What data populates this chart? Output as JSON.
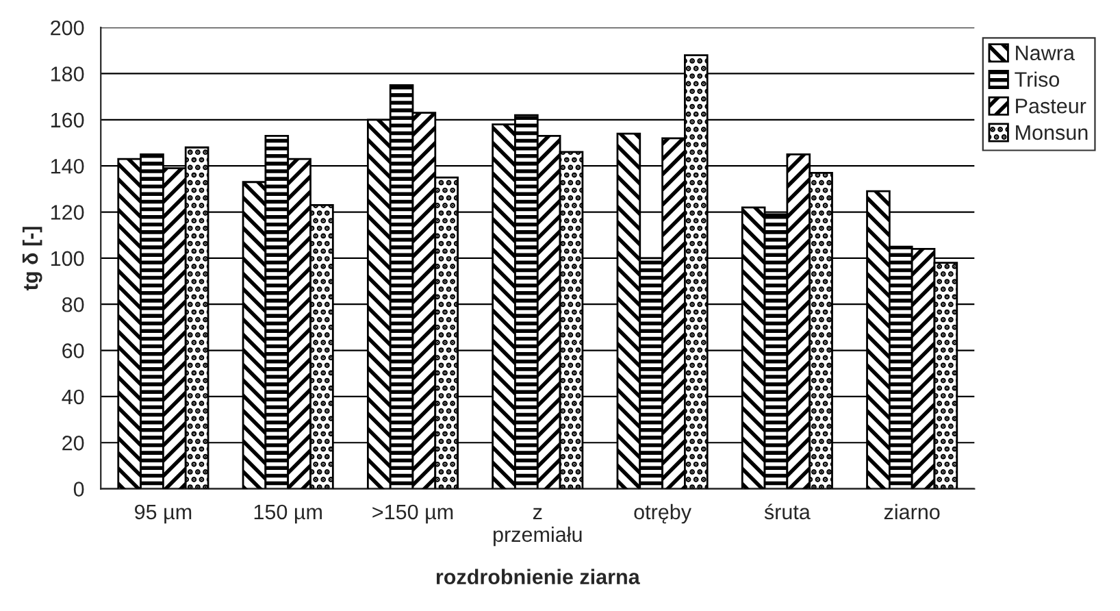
{
  "chart_data": {
    "type": "bar",
    "xlabel": "rozdrobnienie ziarna",
    "ylabel": "tg δ [-]",
    "categories": [
      "95 µm",
      "150 µm",
      ">150 µm",
      "z przemiału",
      "otręby",
      "śruta",
      "ziarno"
    ],
    "series": [
      {
        "name": "Nawra",
        "color": "#000000",
        "values": [
          143,
          133,
          160,
          158,
          154,
          122,
          129
        ]
      },
      {
        "name": "Triso",
        "color": "#000000",
        "values": [
          145,
          153,
          175,
          162,
          100,
          119,
          105
        ]
      },
      {
        "name": "Pasteur",
        "color": "#000000",
        "values": [
          139,
          143,
          163,
          153,
          152,
          145,
          104
        ]
      },
      {
        "name": "Monsun",
        "color": "#000000",
        "values": [
          148,
          123,
          135,
          146,
          188,
          137,
          98
        ]
      }
    ],
    "ylim": [
      0,
      200
    ],
    "yticks": [
      0,
      20,
      40,
      60,
      80,
      100,
      120,
      140,
      160,
      180,
      200
    ],
    "grid": "y",
    "legend": "top right"
  }
}
